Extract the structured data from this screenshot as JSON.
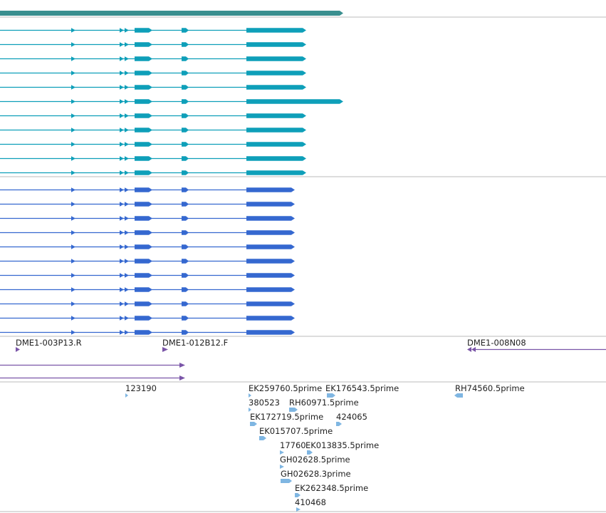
{
  "colors": {
    "gene_bar": "#3a8f8f",
    "transcript_a": "#0e9fb9",
    "transcript_b": "#3568d0",
    "clone": "#7a55a8",
    "est": "#7fb6e2",
    "track_separator": "#bbbbbb",
    "label": "#222222"
  },
  "transcript_group_a": {
    "rows": 11,
    "long_row_index": 5
  },
  "transcript_group_b": {
    "rows": 11
  },
  "clone_features": [
    {
      "label": "DME1-003P13.R",
      "strand": "+"
    },
    {
      "label": "DME1-012B12.F",
      "strand": "+"
    },
    {
      "label": "DME1-008N08",
      "strand": "-"
    }
  ],
  "clone_lines": 2,
  "est_features": [
    {
      "label": "123190"
    },
    {
      "label": "EK259760.5prime"
    },
    {
      "label": "EK176543.5prime"
    },
    {
      "label": "RH74560.5prime"
    },
    {
      "label": "380523"
    },
    {
      "label": "RH60971.5prime"
    },
    {
      "label": "EK172719.5prime"
    },
    {
      "label": "424065"
    },
    {
      "label": "EK015707.5prime"
    },
    {
      "label": "17760"
    },
    {
      "label": "EK013835.5prime"
    },
    {
      "label": "GH02628.5prime"
    },
    {
      "label": "GH02628.3prime"
    },
    {
      "label": "EK262348.5prime"
    },
    {
      "label": "410468"
    }
  ]
}
